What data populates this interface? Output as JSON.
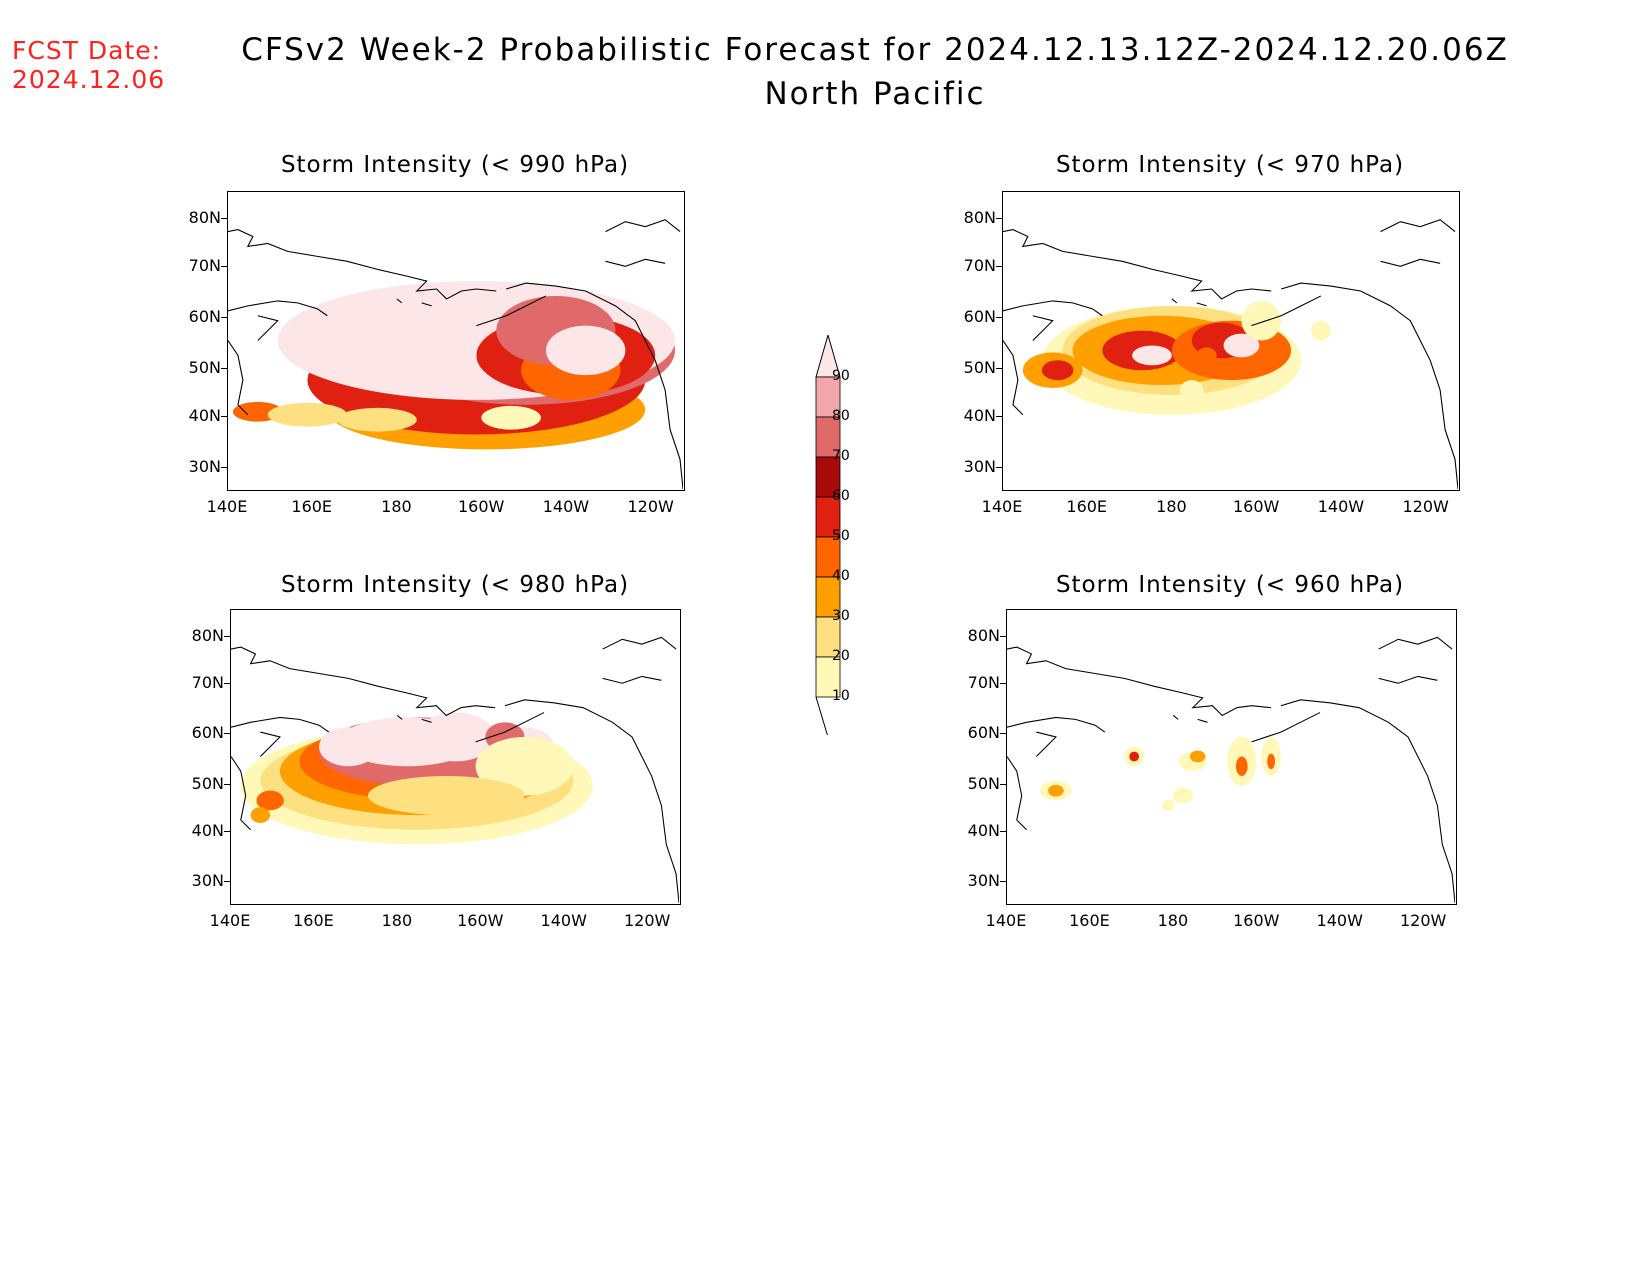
{
  "header": {
    "fcst_label": "FCST Date:",
    "fcst_date": "2024.12.06",
    "title": "CFSv2 Week-2 Probabilistic Forecast for 2024.12.13.12Z-2024.12.20.06Z",
    "region": "North Pacific"
  },
  "axes": {
    "lat_labels": [
      "80N",
      "70N",
      "60N",
      "50N",
      "40N",
      "30N"
    ],
    "lon_labels": [
      "140E",
      "160E",
      "180",
      "160W",
      "140W",
      "120W"
    ]
  },
  "panels": [
    {
      "title": "Storm Intensity (< 990 hPa)",
      "threshold_hPa": 990
    },
    {
      "title": "Storm Intensity (< 970 hPa)",
      "threshold_hPa": 970
    },
    {
      "title": "Storm Intensity (< 980 hPa)",
      "threshold_hPa": 980
    },
    {
      "title": "Storm Intensity (< 960 hPa)",
      "threshold_hPa": 960
    }
  ],
  "colorbar": {
    "labels": [
      "90",
      "80",
      "70",
      "60",
      "50",
      "40",
      "30",
      "20",
      "10"
    ],
    "colors": [
      "#fde6e8",
      "#f4a7ab",
      "#e06a6a",
      "#a80a0a",
      "#e02010",
      "#ff6600",
      "#ffa000",
      "#ffe080",
      "#fff8b8"
    ]
  }
}
